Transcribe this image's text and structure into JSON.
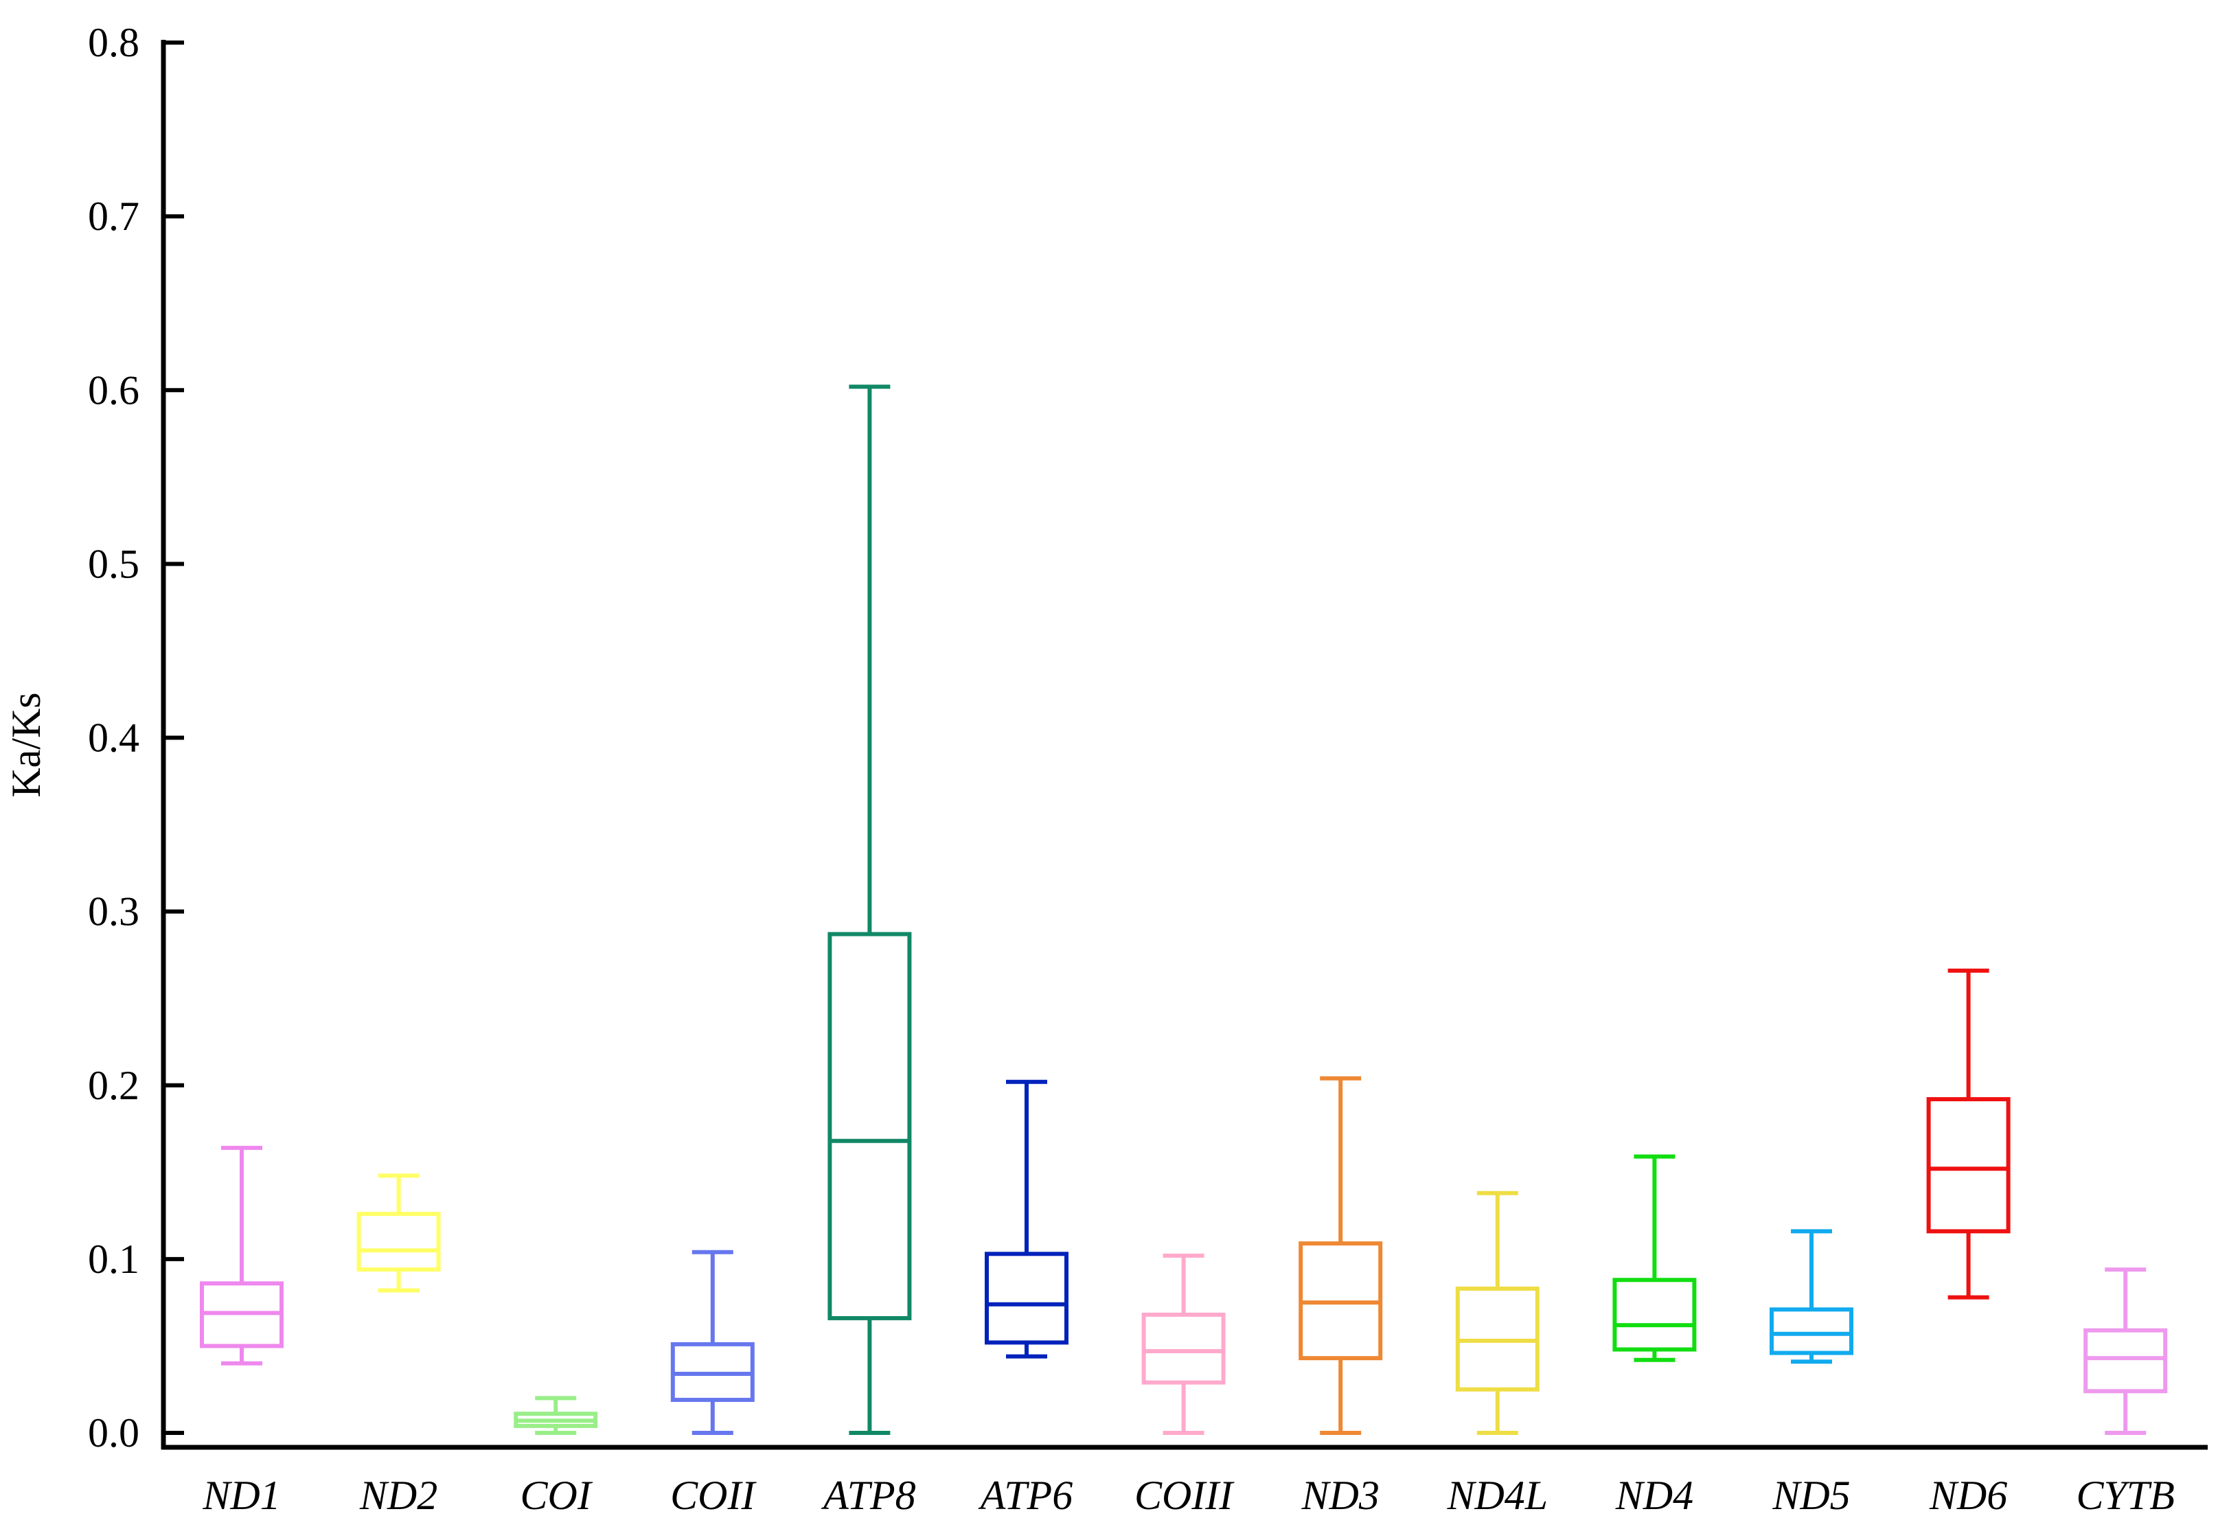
{
  "chart_data": {
    "type": "boxplot",
    "title": "",
    "xlabel": "",
    "ylabel": "Ka/Ks",
    "ylim": [
      0.0,
      0.8
    ],
    "y_ticks": [
      "0.0",
      "0.1",
      "0.2",
      "0.3",
      "0.4",
      "0.5",
      "0.6",
      "0.7",
      "0.8"
    ],
    "y_tick_values": [
      0.0,
      0.1,
      0.2,
      0.3,
      0.4,
      0.5,
      0.6,
      0.7,
      0.8
    ],
    "grid": false,
    "categories": [
      "ND1",
      "ND2",
      "COI",
      "COII",
      "ATP8",
      "ATP6",
      "COIII",
      "ND3",
      "ND4L",
      "ND4",
      "ND5",
      "ND6",
      "CYTB"
    ],
    "boxes": [
      {
        "name": "ND1",
        "min": 0.04,
        "q1": 0.05,
        "median": 0.069,
        "q3": 0.086,
        "max": 0.164,
        "color": "#ee88ee"
      },
      {
        "name": "ND2",
        "min": 0.082,
        "q1": 0.094,
        "median": 0.105,
        "q3": 0.126,
        "max": 0.148,
        "color": "#ffff66"
      },
      {
        "name": "COI",
        "min": 0.0,
        "q1": 0.004,
        "median": 0.007,
        "q3": 0.011,
        "max": 0.02,
        "color": "#99ee88"
      },
      {
        "name": "COII",
        "min": 0.0,
        "q1": 0.019,
        "median": 0.034,
        "q3": 0.051,
        "max": 0.104,
        "color": "#6677ee"
      },
      {
        "name": "ATP8",
        "min": 0.0,
        "q1": 0.066,
        "median": 0.168,
        "q3": 0.287,
        "max": 0.602,
        "color": "#118866"
      },
      {
        "name": "ATP6",
        "min": 0.044,
        "q1": 0.052,
        "median": 0.074,
        "q3": 0.103,
        "max": 0.202,
        "color": "#0022bb"
      },
      {
        "name": "COIII",
        "min": 0.0,
        "q1": 0.029,
        "median": 0.047,
        "q3": 0.068,
        "max": 0.102,
        "color": "#ffaacc"
      },
      {
        "name": "ND3",
        "min": 0.0,
        "q1": 0.043,
        "median": 0.075,
        "q3": 0.109,
        "max": 0.204,
        "color": "#ee8833"
      },
      {
        "name": "ND4L",
        "min": 0.0,
        "q1": 0.025,
        "median": 0.053,
        "q3": 0.083,
        "max": 0.138,
        "color": "#eedd44"
      },
      {
        "name": "ND4",
        "min": 0.042,
        "q1": 0.048,
        "median": 0.062,
        "q3": 0.088,
        "max": 0.159,
        "color": "#11dd11"
      },
      {
        "name": "ND5",
        "min": 0.041,
        "q1": 0.046,
        "median": 0.057,
        "q3": 0.071,
        "max": 0.116,
        "color": "#11aaee"
      },
      {
        "name": "ND6",
        "min": 0.078,
        "q1": 0.116,
        "median": 0.152,
        "q3": 0.192,
        "max": 0.266,
        "color": "#ee1111"
      },
      {
        "name": "CYTB",
        "min": 0.0,
        "q1": 0.024,
        "median": 0.043,
        "q3": 0.059,
        "max": 0.094,
        "color": "#ee99ee"
      }
    ]
  }
}
